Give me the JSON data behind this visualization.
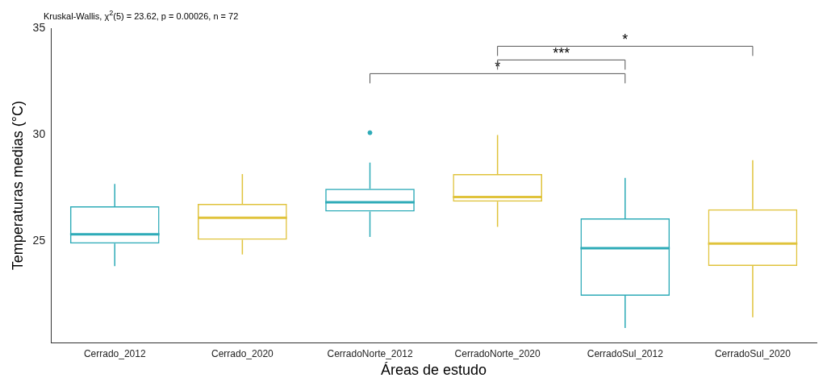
{
  "chart_data": {
    "type": "box",
    "title": "Kruskal-Wallis, χ$^{2}$(5) = 23.62, p = 0.00026, n = 72",
    "xlabel": "Áreas de estudo",
    "ylabel": "Temperaturas medias (°C)",
    "categories": [
      "Cerrado_2012",
      "Cerrado_2020",
      "CerradoNorte_2012",
      "CerradoNorte_2020",
      "CerradoSul_2012",
      "CerradoSul_2020"
    ],
    "colors": [
      "#2eabb8",
      "#e0c33c",
      "#2eabb8",
      "#e0c33c",
      "#2eabb8",
      "#e0c33c"
    ],
    "boxes": [
      {
        "low": 23.8,
        "q1": 24.86,
        "median": 25.3,
        "q3": 26.62,
        "high": 27.67
      },
      {
        "low": 24.35,
        "q1": 25.04,
        "median": 26.08,
        "q3": 26.73,
        "high": 28.14
      },
      {
        "low": 25.18,
        "q1": 26.37,
        "median": 26.81,
        "q3": 27.45,
        "high": 28.68,
        "outliers": [
          30.09
        ]
      },
      {
        "low": 25.65,
        "q1": 26.84,
        "median": 27.06,
        "q3": 28.14,
        "high": 29.98
      },
      {
        "low": 20.88,
        "q1": 22.4,
        "median": 24.64,
        "q3": 26.05,
        "high": 27.96
      },
      {
        "low": 21.39,
        "q1": 23.81,
        "median": 24.86,
        "q3": 26.48,
        "high": 28.79
      }
    ],
    "ylim": [
      20.2,
      35
    ],
    "yticks": [
      25,
      30,
      35
    ],
    "grid": false,
    "legend": false,
    "annotations": [
      "*",
      "***",
      "*"
    ]
  }
}
